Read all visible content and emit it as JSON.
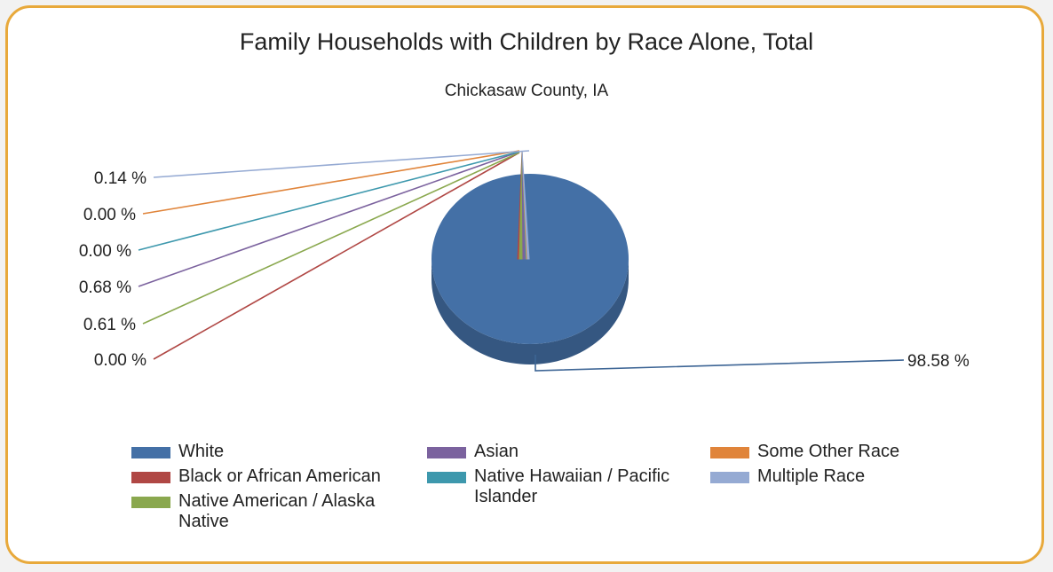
{
  "chart_data": {
    "type": "pie",
    "title": "Family Households with Children by Race Alone, Total",
    "subtitle": "Chickasaw County, IA",
    "categories": [
      "White",
      "Black or African American",
      "Native American / Alaska Native",
      "Asian",
      "Native Hawaiian / Pacific Islander",
      "Some Other Race",
      "Multiple Race"
    ],
    "values": [
      98.58,
      0.0,
      0.61,
      0.68,
      0.0,
      0.0,
      0.14
    ],
    "labels": [
      "98.58 %",
      "0.00 %",
      "0.61 %",
      "0.68 %",
      "0.00 %",
      "0.00 %",
      "0.14 %"
    ],
    "colors": [
      "#4470a6",
      "#b04744",
      "#8aa84e",
      "#7b629e",
      "#3d98ad",
      "#e0843a",
      "#95aad3"
    ],
    "legend_position": "bottom",
    "style": "3d-exploded"
  }
}
